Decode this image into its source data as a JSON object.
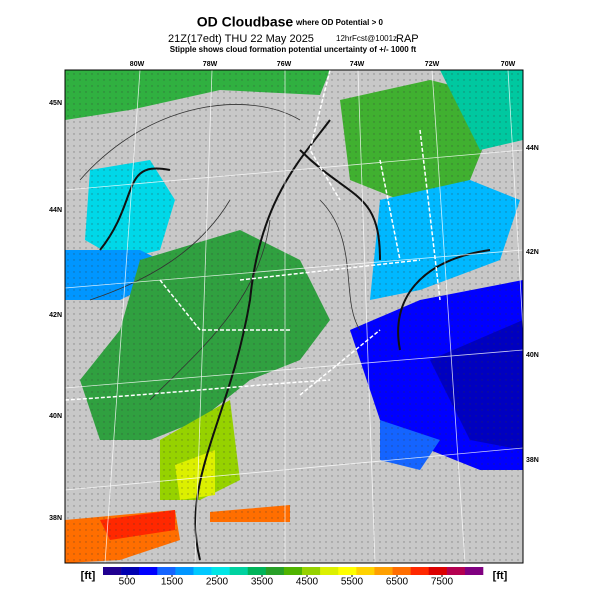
{
  "header": {
    "title": "OD Cloudbase",
    "title_note": "where OD Potential > 0",
    "line2": "21Z(17edt) THU 22 May 2025",
    "line2_fcst": "12hrFcst@1001z",
    "line2_model": "RAP",
    "line3": "Stipple shows cloud formation potential uncertainty of +/- 1000 ft"
  },
  "map": {
    "lon_labels": [
      "80W",
      "78W",
      "76W",
      "74W",
      "72W",
      "70W"
    ],
    "lat_labels_left": [
      "45N",
      "44N",
      "42N",
      "40N",
      "38N"
    ],
    "lat_labels_right": [
      "44N",
      "42N",
      "40N",
      "38N"
    ]
  },
  "colorbar": {
    "unit_left": "[ft]",
    "unit_right": "[ft]",
    "ticks": [
      500,
      1500,
      2500,
      3500,
      4500,
      5500,
      6500,
      7500
    ],
    "colors": [
      "#200090",
      "#0000b0",
      "#0000ff",
      "#1464ff",
      "#0096ff",
      "#00c8ff",
      "#00e6e6",
      "#00d2a0",
      "#00b45a",
      "#28a028",
      "#50b400",
      "#96d200",
      "#dcf000",
      "#ffff00",
      "#ffd200",
      "#ffa000",
      "#ff6e00",
      "#ff2800",
      "#dc0000",
      "#b40050",
      "#800080"
    ]
  }
}
